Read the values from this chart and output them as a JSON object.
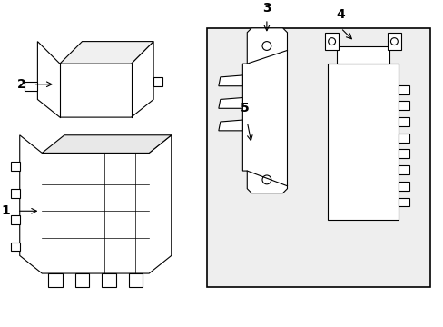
{
  "background_color": "#ffffff",
  "line_color": "#000000",
  "light_gray": "#d0d0d0",
  "box_fill": "#e8e8e8",
  "label_1": "1",
  "label_2": "2",
  "label_3": "3",
  "label_4": "4",
  "label_5": "5",
  "font_size_labels": 10,
  "fig_width": 4.89,
  "fig_height": 3.6,
  "dpi": 100
}
